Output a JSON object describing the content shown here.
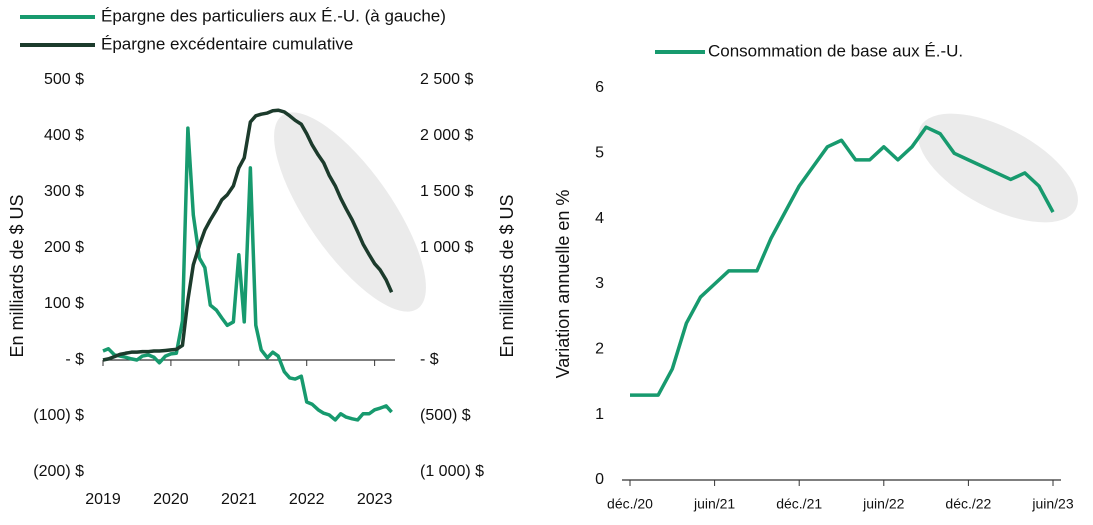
{
  "chart_data": [
    {
      "type": "line",
      "x": [
        2019,
        2019.08,
        2019.17,
        2019.25,
        2019.33,
        2019.42,
        2019.5,
        2019.58,
        2019.67,
        2019.75,
        2019.83,
        2019.92,
        2020,
        2020.08,
        2020.17,
        2020.25,
        2020.33,
        2020.42,
        2020.5,
        2020.58,
        2020.67,
        2020.75,
        2020.83,
        2020.92,
        2021,
        2021.08,
        2021.17,
        2021.25,
        2021.33,
        2021.42,
        2021.5,
        2021.58,
        2021.67,
        2021.75,
        2021.83,
        2021.92,
        2022,
        2022.08,
        2022.17,
        2022.25,
        2022.33,
        2022.42,
        2022.5,
        2022.58,
        2022.67,
        2022.75,
        2022.83,
        2022.92,
        2023,
        2023.08,
        2023.17,
        2023.25
      ],
      "xlim": [
        2019,
        2023.3
      ],
      "xticks": [
        2019,
        2020,
        2021,
        2022,
        2023
      ],
      "ylim": [
        -200,
        500
      ],
      "yticks": [
        {
          "value": -200,
          "label": "(200) $"
        },
        {
          "value": -100,
          "label": "(100) $"
        },
        {
          "value": 0,
          "label": "- $"
        },
        {
          "value": 100,
          "label": "100 $"
        },
        {
          "value": 200,
          "label": "200 $"
        },
        {
          "value": 300,
          "label": "300 $"
        },
        {
          "value": 400,
          "label": "400 $"
        },
        {
          "value": 500,
          "label": "500 $"
        }
      ],
      "y2lim": [
        -1000,
        2500
      ],
      "y2ticks": [
        {
          "value": -1000,
          "label": "(1 000) $"
        },
        {
          "value": -500,
          "label": "(500) $"
        },
        {
          "value": 0,
          "label": "- $"
        },
        {
          "value": 1000,
          "label": "1 000 $"
        },
        {
          "value": 1500,
          "label": "1 500 $"
        },
        {
          "value": 2000,
          "label": "2 000 $"
        },
        {
          "value": 2500,
          "label": "2 500 $"
        }
      ],
      "ylabel": "En milliards de $ US",
      "y2label": "En milliards de $ US",
      "series": [
        {
          "name": "Épargne des particuliers aux É.-U. (à gauche)",
          "color": "#179a6e",
          "values": [
            16,
            20,
            9,
            7,
            5,
            2,
            0,
            7,
            9,
            5,
            -5,
            7,
            11,
            12,
            70,
            414,
            259,
            182,
            165,
            98,
            89,
            75,
            62,
            68,
            188,
            68,
            343,
            62,
            18,
            4,
            14,
            7,
            -21,
            -32,
            -34,
            -29,
            -75,
            -79,
            -89,
            -95,
            -98,
            -107,
            -96,
            -102,
            -105,
            -107,
            -96,
            -96,
            -89,
            -86,
            -82,
            -93
          ]
        },
        {
          "name": "Épargne excédentaire cumulative",
          "color": "#1c3b2c",
          "axis": "y2",
          "values": [
            0,
            10,
            30,
            50,
            60,
            70,
            70,
            75,
            75,
            80,
            80,
            85,
            90,
            95,
            130,
            535,
            850,
            1025,
            1160,
            1250,
            1340,
            1430,
            1475,
            1555,
            1715,
            1805,
            2125,
            2180,
            2195,
            2205,
            2225,
            2230,
            2215,
            2180,
            2140,
            2105,
            2020,
            1920,
            1830,
            1760,
            1650,
            1555,
            1445,
            1350,
            1250,
            1145,
            1035,
            940,
            860,
            805,
            715,
            605
          ]
        }
      ]
    },
    {
      "type": "line",
      "categories": [
        "déc./20",
        null,
        null,
        null,
        null,
        null,
        "juin/21",
        null,
        null,
        null,
        null,
        null,
        "déc./21",
        null,
        null,
        null,
        null,
        null,
        "juin/22",
        null,
        null,
        null,
        null,
        null,
        "déc./22",
        null,
        null,
        null,
        null,
        null,
        "juin/23"
      ],
      "ylim": [
        0,
        6
      ],
      "yticks": [
        0,
        1,
        2,
        3,
        4,
        5,
        6
      ],
      "ylabel": "Variation annuelle en %",
      "series": [
        {
          "name": "Consommation de base aux É.-U.",
          "color": "#179a6e",
          "values": [
            1.3,
            1.3,
            1.3,
            1.7,
            2.4,
            2.8,
            3.0,
            3.2,
            3.2,
            3.2,
            3.7,
            4.1,
            4.5,
            4.8,
            5.1,
            5.2,
            4.9,
            4.9,
            5.1,
            4.9,
            5.1,
            5.4,
            5.3,
            5.0,
            4.9,
            4.8,
            4.7,
            4.6,
            4.7,
            4.5,
            4.1
          ]
        }
      ]
    }
  ]
}
